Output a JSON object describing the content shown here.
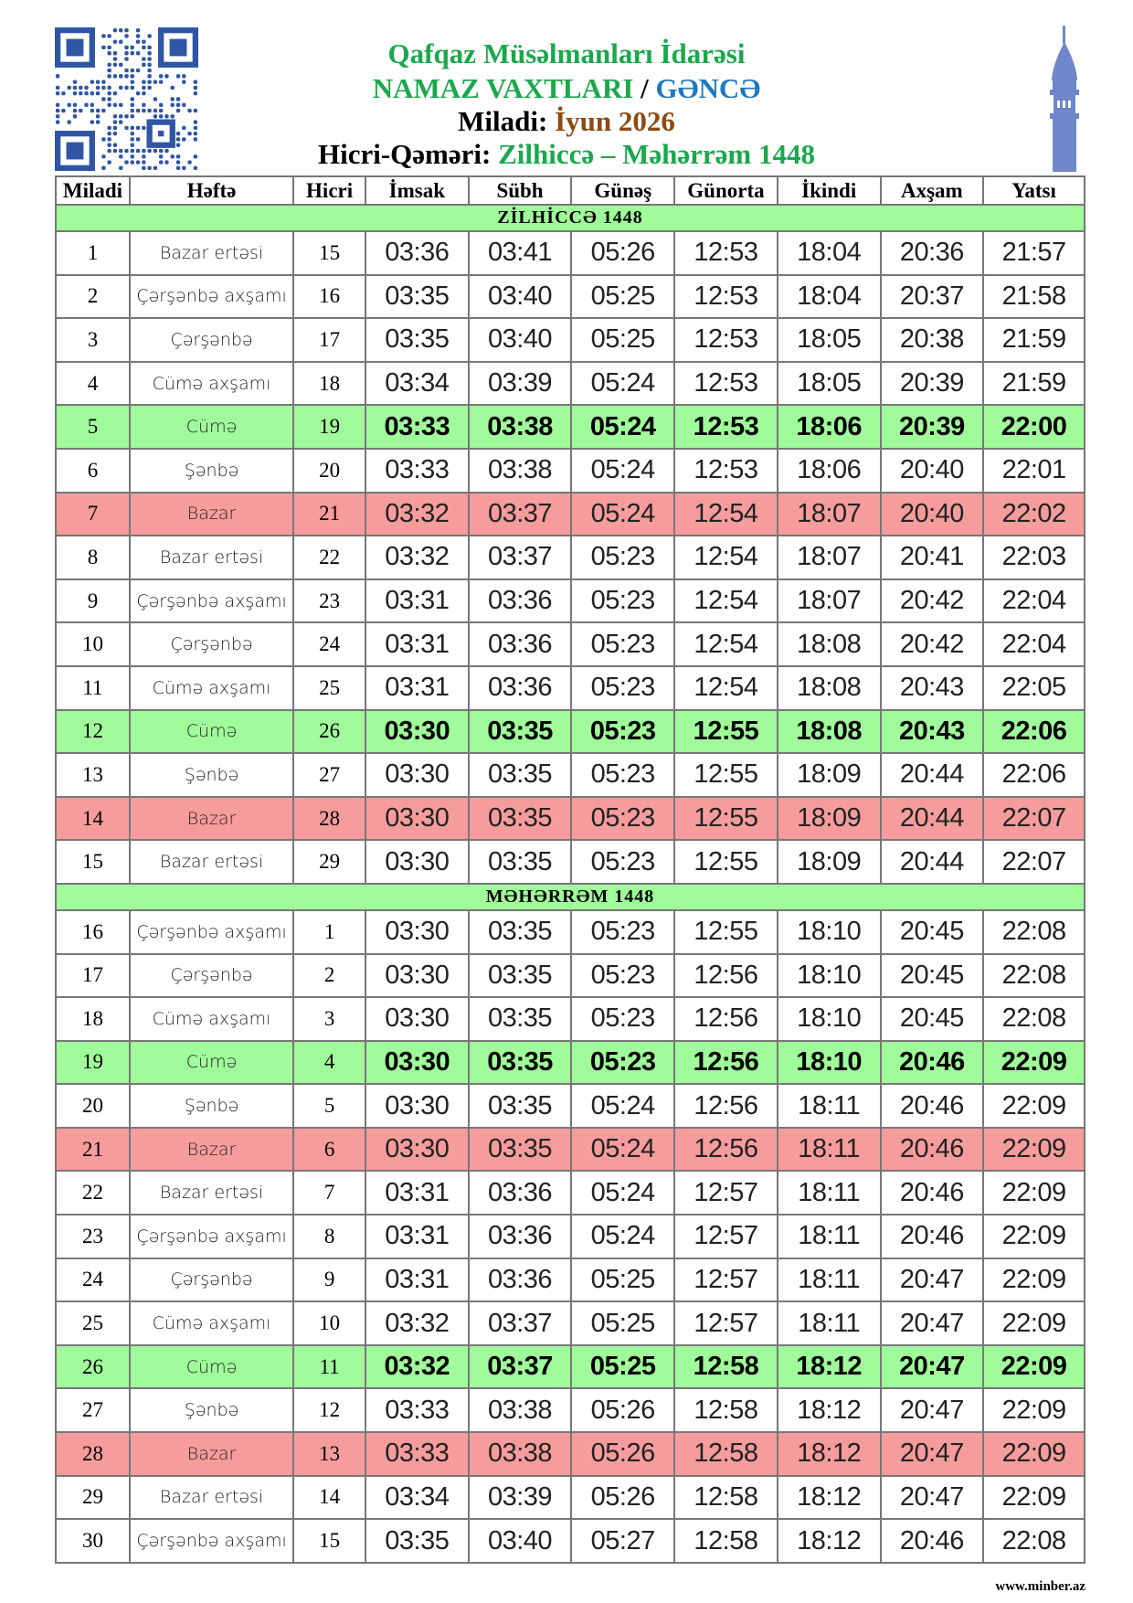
{
  "header": {
    "line1": "Qafqaz Müsəlmanları İdarəsi",
    "line2a": "NAMAZ VAXTLARI",
    "line2sep": " / ",
    "line2b": "GƏNCƏ",
    "line3a": "Miladi: ",
    "line3b": "İyun 2026",
    "line4a": "Hicri-Qəməri: ",
    "line4b": "Zilhiccə – Məhərrəm 1448"
  },
  "colors": {
    "friday": "#a0fb9a",
    "sunday": "#f79c9c",
    "section": "#a0fb9a",
    "title_green": "#1aa84b",
    "city_blue": "#1b78c2",
    "month_brown": "#8a4a12"
  },
  "columns": [
    "Miladi",
    "Həftə",
    "Hicri",
    "İmsak",
    "Sübh",
    "Günəş",
    "Günorta",
    "İkindi",
    "Axşam",
    "Yatsı"
  ],
  "sections": [
    {
      "title": "ZİLHİCCƏ 1448",
      "rows": [
        [
          "1",
          "Bazar ertəsi",
          "15",
          "03:36",
          "03:41",
          "05:26",
          "12:53",
          "18:04",
          "20:36",
          "21:57"
        ],
        [
          "2",
          "Çərşənbə axşamı",
          "16",
          "03:35",
          "03:40",
          "05:25",
          "12:53",
          "18:04",
          "20:37",
          "21:58"
        ],
        [
          "3",
          "Çərşənbə",
          "17",
          "03:35",
          "03:40",
          "05:25",
          "12:53",
          "18:05",
          "20:38",
          "21:59"
        ],
        [
          "4",
          "Cümə axşamı",
          "18",
          "03:34",
          "03:39",
          "05:24",
          "12:53",
          "18:05",
          "20:39",
          "21:59"
        ],
        [
          "5",
          "Cümə",
          "19",
          "03:33",
          "03:38",
          "05:24",
          "12:53",
          "18:06",
          "20:39",
          "22:00"
        ],
        [
          "6",
          "Şənbə",
          "20",
          "03:33",
          "03:38",
          "05:24",
          "12:53",
          "18:06",
          "20:40",
          "22:01"
        ],
        [
          "7",
          "Bazar",
          "21",
          "03:32",
          "03:37",
          "05:24",
          "12:54",
          "18:07",
          "20:40",
          "22:02"
        ],
        [
          "8",
          "Bazar ertəsi",
          "22",
          "03:32",
          "03:37",
          "05:23",
          "12:54",
          "18:07",
          "20:41",
          "22:03"
        ],
        [
          "9",
          "Çərşənbə axşamı",
          "23",
          "03:31",
          "03:36",
          "05:23",
          "12:54",
          "18:07",
          "20:42",
          "22:04"
        ],
        [
          "10",
          "Çərşənbə",
          "24",
          "03:31",
          "03:36",
          "05:23",
          "12:54",
          "18:08",
          "20:42",
          "22:04"
        ],
        [
          "11",
          "Cümə axşamı",
          "25",
          "03:31",
          "03:36",
          "05:23",
          "12:54",
          "18:08",
          "20:43",
          "22:05"
        ],
        [
          "12",
          "Cümə",
          "26",
          "03:30",
          "03:35",
          "05:23",
          "12:55",
          "18:08",
          "20:43",
          "22:06"
        ],
        [
          "13",
          "Şənbə",
          "27",
          "03:30",
          "03:35",
          "05:23",
          "12:55",
          "18:09",
          "20:44",
          "22:06"
        ],
        [
          "14",
          "Bazar",
          "28",
          "03:30",
          "03:35",
          "05:23",
          "12:55",
          "18:09",
          "20:44",
          "22:07"
        ],
        [
          "15",
          "Bazar ertəsi",
          "29",
          "03:30",
          "03:35",
          "05:23",
          "12:55",
          "18:09",
          "20:44",
          "22:07"
        ]
      ]
    },
    {
      "title": "MƏHƏRRƏM 1448",
      "rows": [
        [
          "16",
          "Çərşənbə axşamı",
          "1",
          "03:30",
          "03:35",
          "05:23",
          "12:55",
          "18:10",
          "20:45",
          "22:08"
        ],
        [
          "17",
          "Çərşənbə",
          "2",
          "03:30",
          "03:35",
          "05:23",
          "12:56",
          "18:10",
          "20:45",
          "22:08"
        ],
        [
          "18",
          "Cümə axşamı",
          "3",
          "03:30",
          "03:35",
          "05:23",
          "12:56",
          "18:10",
          "20:45",
          "22:08"
        ],
        [
          "19",
          "Cümə",
          "4",
          "03:30",
          "03:35",
          "05:23",
          "12:56",
          "18:10",
          "20:46",
          "22:09"
        ],
        [
          "20",
          "Şənbə",
          "5",
          "03:30",
          "03:35",
          "05:24",
          "12:56",
          "18:11",
          "20:46",
          "22:09"
        ],
        [
          "21",
          "Bazar",
          "6",
          "03:30",
          "03:35",
          "05:24",
          "12:56",
          "18:11",
          "20:46",
          "22:09"
        ],
        [
          "22",
          "Bazar ertəsi",
          "7",
          "03:31",
          "03:36",
          "05:24",
          "12:57",
          "18:11",
          "20:46",
          "22:09"
        ],
        [
          "23",
          "Çərşənbə axşamı",
          "8",
          "03:31",
          "03:36",
          "05:24",
          "12:57",
          "18:11",
          "20:46",
          "22:09"
        ],
        [
          "24",
          "Çərşənbə",
          "9",
          "03:31",
          "03:36",
          "05:25",
          "12:57",
          "18:11",
          "20:47",
          "22:09"
        ],
        [
          "25",
          "Cümə axşamı",
          "10",
          "03:32",
          "03:37",
          "05:25",
          "12:57",
          "18:11",
          "20:47",
          "22:09"
        ],
        [
          "26",
          "Cümə",
          "11",
          "03:32",
          "03:37",
          "05:25",
          "12:58",
          "18:12",
          "20:47",
          "22:09"
        ],
        [
          "27",
          "Şənbə",
          "12",
          "03:33",
          "03:38",
          "05:26",
          "12:58",
          "18:12",
          "20:47",
          "22:09"
        ],
        [
          "28",
          "Bazar",
          "13",
          "03:33",
          "03:38",
          "05:26",
          "12:58",
          "18:12",
          "20:47",
          "22:09"
        ],
        [
          "29",
          "Bazar ertəsi",
          "14",
          "03:34",
          "03:39",
          "05:26",
          "12:58",
          "18:12",
          "20:47",
          "22:09"
        ],
        [
          "30",
          "Çərşənbə axşamı",
          "15",
          "03:35",
          "03:40",
          "05:27",
          "12:58",
          "18:12",
          "20:46",
          "22:08"
        ]
      ]
    }
  ],
  "footer": "www.minber.az"
}
